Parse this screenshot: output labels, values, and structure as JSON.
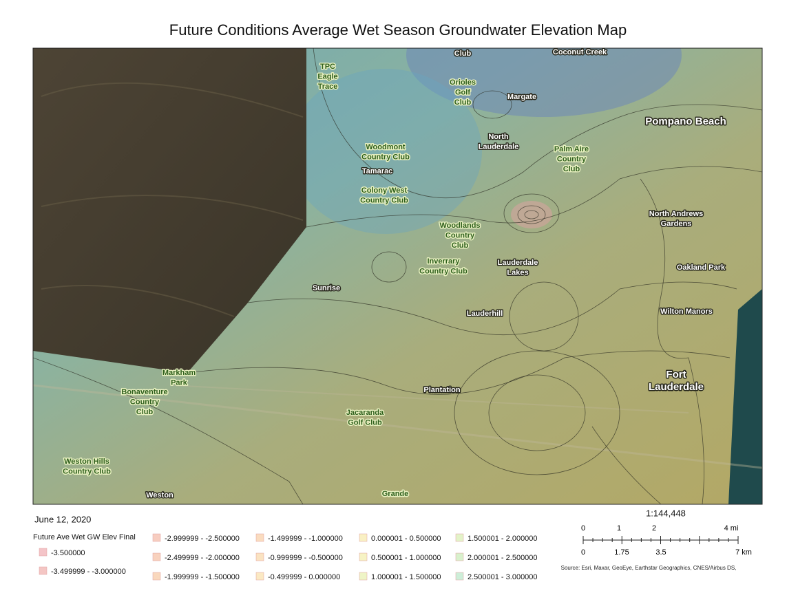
{
  "title": "Future Conditions Average Wet Season Groundwater Elevation Map",
  "map": {
    "places": [
      {
        "lines": [
          "Club"
        ]
      },
      {
        "lines": [
          "Coconut Creek"
        ]
      },
      {
        "lines": [
          "TPC",
          "Eagle",
          "Trace"
        ]
      },
      {
        "lines": [
          "Orioles",
          "Golf",
          "Club"
        ]
      },
      {
        "lines": [
          "Margate"
        ]
      },
      {
        "lines": [
          "Pompano Beach"
        ]
      },
      {
        "lines": [
          "North",
          "Lauderdale"
        ]
      },
      {
        "lines": [
          "Woodmont",
          "Country Club"
        ]
      },
      {
        "lines": [
          "Tamarac"
        ]
      },
      {
        "lines": [
          "Palm Aire",
          "Country",
          "Club"
        ]
      },
      {
        "lines": [
          "Colony West",
          "Country Club"
        ]
      },
      {
        "lines": [
          "Woodlands",
          "Country",
          "Club"
        ]
      },
      {
        "lines": [
          "North Andrews",
          "Gardens"
        ]
      },
      {
        "lines": [
          "Inverrary",
          "Country Club"
        ]
      },
      {
        "lines": [
          "Lauderdale",
          "Lakes"
        ]
      },
      {
        "lines": [
          "Oakland Park"
        ]
      },
      {
        "lines": [
          "Sunrise"
        ]
      },
      {
        "lines": [
          "Lauderhill"
        ]
      },
      {
        "lines": [
          "Wilton Manors"
        ]
      },
      {
        "lines": [
          "Markham",
          "Park"
        ]
      },
      {
        "lines": [
          "Fort",
          "Lauderdale"
        ]
      },
      {
        "lines": [
          "Bonaventure",
          "Country",
          "Club"
        ]
      },
      {
        "lines": [
          "Plantation"
        ]
      },
      {
        "lines": [
          "Jacaranda",
          "Golf Club"
        ]
      },
      {
        "lines": [
          "Weston Hills",
          "Country Club"
        ]
      },
      {
        "lines": [
          "Weston"
        ]
      },
      {
        "lines": [
          "Grande"
        ]
      }
    ]
  },
  "date": "June 12, 2020",
  "legend": {
    "title": "Future Ave Wet GW Elev Final",
    "items": [
      {
        "label": "-3.500000",
        "color": "#f4c4c8"
      },
      {
        "label": "-3.499999 - -3.000000",
        "color": "#f4c6c4"
      },
      {
        "label": "-2.999999 - -2.500000",
        "color": "#f7cdc0"
      },
      {
        "label": "-2.499999 - -2.000000",
        "color": "#f8d2be"
      },
      {
        "label": "-1.999999 - -1.500000",
        "color": "#f9d8bd"
      },
      {
        "label": "-1.499999 - -1.000000",
        "color": "#fadcbf"
      },
      {
        "label": "-0.999999 - -0.500000",
        "color": "#fae3c1"
      },
      {
        "label": "-0.499999 - 0.000000",
        "color": "#fbe9c3"
      },
      {
        "label": "0.000001 - 0.500000",
        "color": "#f9f0c3"
      },
      {
        "label": "0.500001 - 1.000000",
        "color": "#f6f3c4"
      },
      {
        "label": "1.000001 - 1.500000",
        "color": "#eef4c6"
      },
      {
        "label": "1.500001 - 2.000000",
        "color": "#e3f3c8"
      },
      {
        "label": "2.000001 - 2.500000",
        "color": "#d8f1cc"
      },
      {
        "label": "2.500001 - 3.000000",
        "color": "#cdeed8"
      }
    ]
  },
  "scale": {
    "ratio": "1:144,448",
    "mi": [
      "0",
      "1",
      "2",
      "4 mi"
    ],
    "km": [
      "0",
      "1.75",
      "3.5",
      "7 km"
    ]
  },
  "source": "Source: Esri, Maxar, GeoEye, Earthstar Geographics, CNES/Airbus DS,"
}
